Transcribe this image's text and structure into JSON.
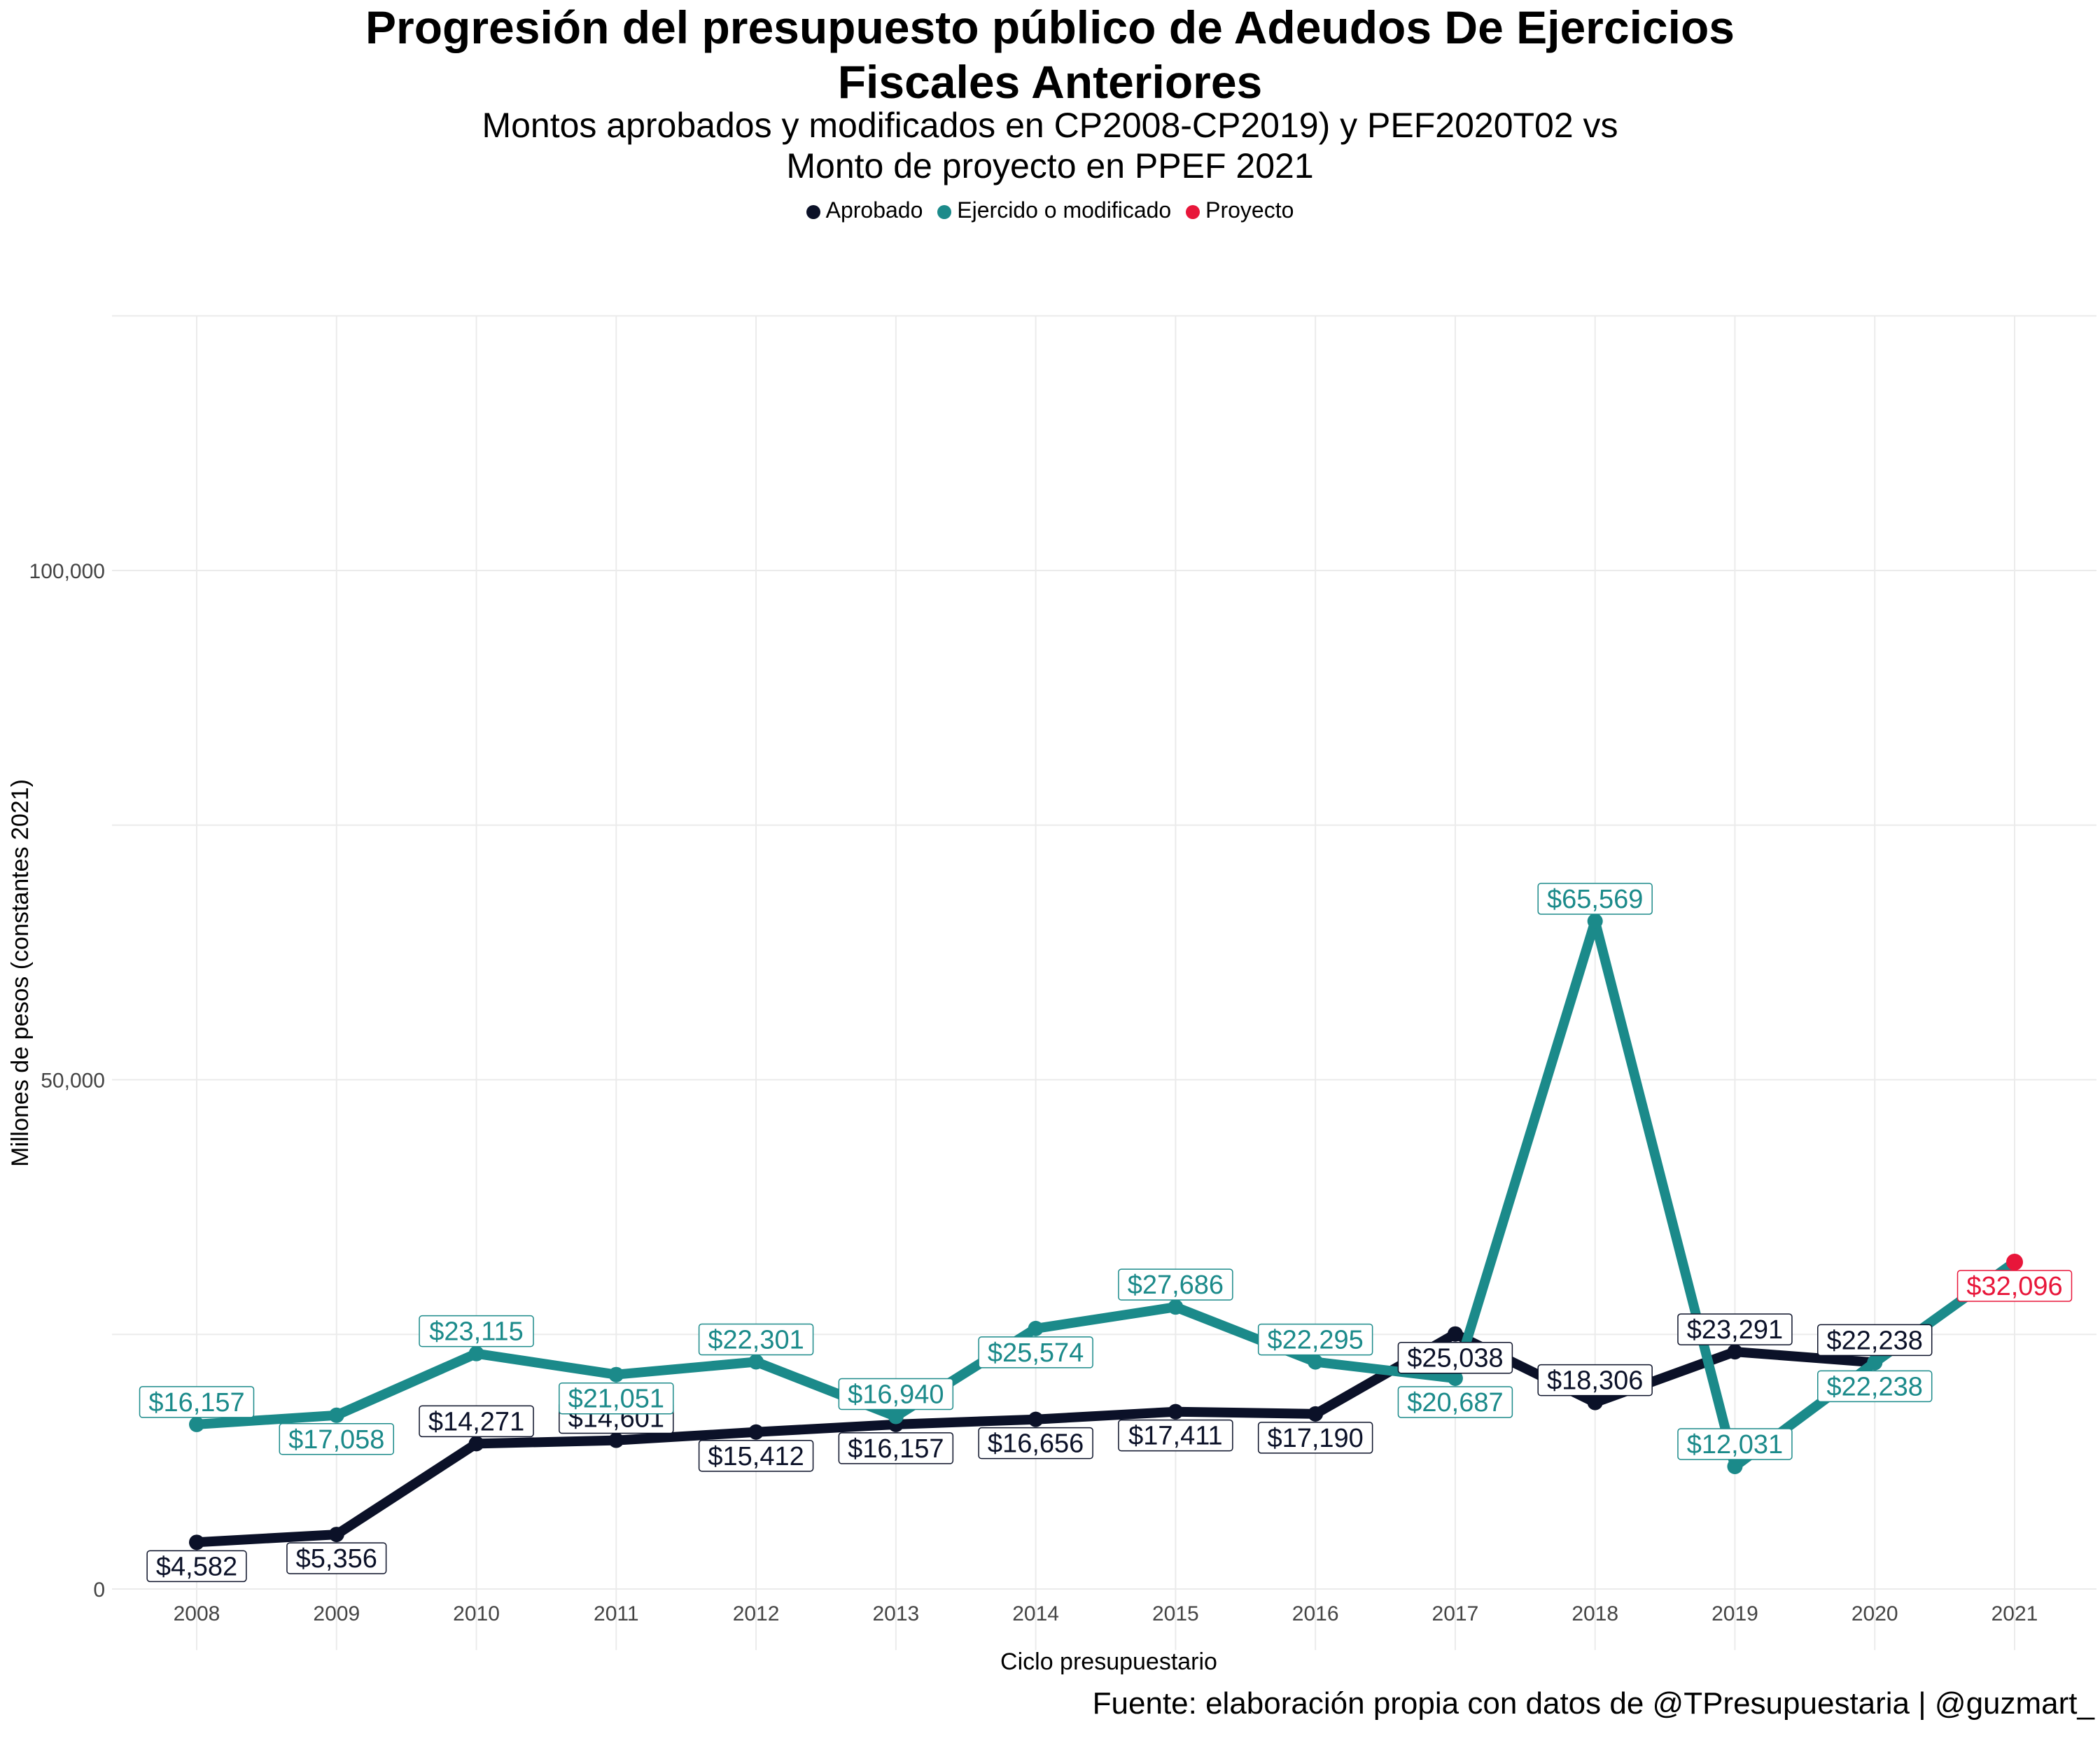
{
  "chart_data": {
    "type": "line",
    "title_lines": [
      "Progresión del presupuesto público de Adeudos De Ejercicios",
      "Fiscales Anteriores"
    ],
    "subtitle_lines": [
      "Montos aprobados y modificados en CP2008-CP2019) y PEF2020T02 vs",
      "Monto de proyecto en PPEF 2021"
    ],
    "xlabel": "Ciclo presupuestario",
    "ylabel": "Millones de pesos (constantes 2021)",
    "caption": "Fuente: elaboración propia con datos de @TPresupuestaria | @guzmart_",
    "x": [
      2008,
      2009,
      2010,
      2011,
      2012,
      2013,
      2014,
      2015,
      2016,
      2017,
      2018,
      2019,
      2020,
      2021
    ],
    "ylim": [
      -6000,
      125000
    ],
    "yticks": [
      0,
      50000,
      100000
    ],
    "ytick_labels": [
      "0",
      "50,000",
      "100,000"
    ],
    "grid": true,
    "legend_position": "top",
    "series": [
      {
        "name": "Aprobado",
        "color": "#0b1128",
        "x": [
          2008,
          2009,
          2010,
          2011,
          2012,
          2013,
          2014,
          2015,
          2016,
          2017,
          2018,
          2019,
          2020
        ],
        "values": [
          4582,
          5356,
          14271,
          14601,
          15412,
          16157,
          16656,
          17411,
          17190,
          25038,
          18306,
          23291,
          22238
        ],
        "labels": [
          "$4,582",
          "$5,356",
          "$14,271",
          "$14,601",
          "$15,412",
          "$16,157",
          "$16,656",
          "$17,411",
          "$17,190",
          "$25,038",
          "$18,306",
          "$23,291",
          "$22,238"
        ],
        "label_dir": [
          "below",
          "below",
          "above",
          "above",
          "below",
          "below",
          "below",
          "below",
          "below",
          "below",
          "above",
          "above",
          "above"
        ]
      },
      {
        "name": "Ejercido o modificado",
        "color": "#1b8a8a",
        "x": [
          2008,
          2009,
          2010,
          2011,
          2012,
          2013,
          2014,
          2015,
          2016,
          2017,
          2018,
          2019,
          2020,
          2021
        ],
        "values": [
          16157,
          17058,
          23115,
          21051,
          22301,
          16940,
          25574,
          27686,
          22295,
          20687,
          65569,
          12031,
          22238,
          32096
        ],
        "labels": [
          "$16,157",
          "$17,058",
          "$23,115",
          "$21,051",
          "$22,301",
          "$16,940",
          "$25,574",
          "$27,686",
          "$22,295",
          "$20,687",
          "$65,569",
          "$12,031",
          "$22,238",
          ""
        ],
        "label_dir": [
          "above",
          "below",
          "above",
          "below",
          "above",
          "above",
          "below",
          "above",
          "above",
          "below",
          "above",
          "above",
          "below",
          "above"
        ]
      },
      {
        "name": "Proyecto",
        "color": "#e8163a",
        "x": [
          2021
        ],
        "values": [
          32096
        ],
        "labels": [
          "$32,096"
        ],
        "label_dir": [
          "below"
        ]
      }
    ]
  }
}
